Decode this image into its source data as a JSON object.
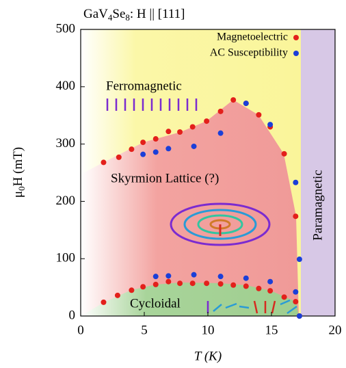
{
  "chart_data": {
    "type": "scatter",
    "title": "GaV4Se8: H || [111]",
    "x_label": "T (K)",
    "y_label": "μ0H (mT)",
    "xlim": [
      0,
      20
    ],
    "xticks": [
      0,
      5,
      10,
      15,
      20
    ],
    "ylim": [
      0,
      500
    ],
    "yticks": [
      0,
      100,
      200,
      300,
      400,
      500
    ],
    "legend": "top-right",
    "annotations": [
      "Ferromagnetic",
      "Skyrmion Lattice (?)",
      "Cycloidal",
      "Paramagnetic"
    ],
    "series": [
      {
        "name": "Magnetoelectric",
        "color": "#e3201b",
        "x": [
          1.8,
          3.0,
          4.0,
          4.9,
          5.9,
          6.9,
          7.8,
          8.8,
          9.9,
          11.0,
          12.0,
          13.0,
          14.0,
          14.9,
          16.0,
          16.9,
          1.8,
          2.9,
          4.0,
          4.9,
          5.9,
          6.9,
          7.8,
          8.8,
          9.9,
          11.0,
          12.0,
          13.0,
          14.0,
          14.9,
          16.0,
          16.9,
          17.2
        ],
        "values": [
          268,
          277,
          291,
          303,
          309,
          322,
          321,
          330,
          340,
          357,
          377,
          371,
          351,
          330,
          283,
          174,
          24,
          36,
          45,
          51,
          55,
          60,
          57,
          57,
          57,
          56,
          54,
          52,
          48,
          44,
          33,
          25,
          0
        ]
      },
      {
        "name": "AC Susceptibility",
        "color": "#1b3fd8",
        "x": [
          4.9,
          5.9,
          6.9,
          8.9,
          11.0,
          13.0,
          14.9,
          16.9,
          17.2,
          5.9,
          6.9,
          8.9,
          11.0,
          13.0,
          14.9,
          16.9,
          17.2
        ],
        "values": [
          282,
          286,
          292,
          296,
          319,
          371,
          334,
          233,
          99,
          69,
          70,
          72,
          69,
          66,
          60,
          42,
          0
        ]
      }
    ]
  }
}
